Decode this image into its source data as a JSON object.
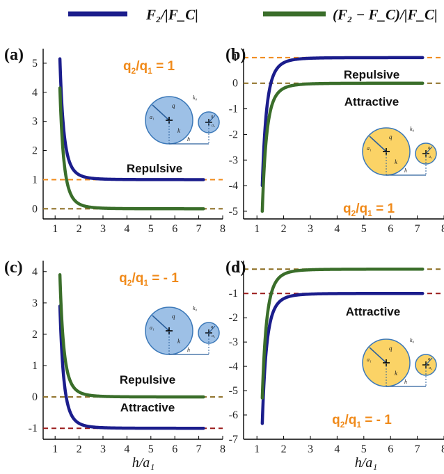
{
  "legend": {
    "entries": [
      {
        "label": "F₂/|F_C|",
        "color": "#1b1d8c"
      },
      {
        "label": "(F₂ − F_C)/|F_C|",
        "color": "#3a6e2a"
      }
    ]
  },
  "x_axis_label": "h/a₁",
  "colors": {
    "blue_series": "#1b1d8c",
    "green_series": "#3a6e2a",
    "orange_ref": "#f08a1a",
    "brown_ref": "#8a6a1e",
    "red_ref": "#9a1b1b",
    "sphere_blue": "#9dc0e6",
    "sphere_yellow": "#fbd366"
  },
  "chart_data": [
    {
      "panel": "(a)",
      "type": "line",
      "ratio_text": "q2/q1 = 1",
      "ratio_parts": [
        "q",
        "2",
        "/q",
        "1",
        " = 1"
      ],
      "annotations": [
        "Repulsive"
      ],
      "xlim": [
        0.5,
        8
      ],
      "ylim": [
        -0.35,
        5.5
      ],
      "xticks": [
        1,
        2,
        3,
        4,
        5,
        6,
        7,
        8
      ],
      "yticks": [
        0,
        1,
        2,
        3,
        4,
        5
      ],
      "ref_lines": [
        {
          "y": 1,
          "color": "orange"
        },
        {
          "y": 0,
          "color": "brown"
        }
      ],
      "inset": "blue",
      "series": [
        {
          "name": "F₂/|F_C|",
          "color": "blue",
          "x_start": 1.2,
          "x_end": 7.2,
          "y_start": 5.15,
          "asymptote": 1
        },
        {
          "name": "(F₂ − F_C)/|F_C|",
          "color": "green",
          "x_start": 1.2,
          "x_end": 7.2,
          "y_start": 4.15,
          "asymptote": 0
        }
      ]
    },
    {
      "panel": "(b)",
      "type": "line",
      "ratio_text": "q2/q1 = 1",
      "ratio_parts": [
        "q",
        "2",
        "/q",
        "1",
        " = 1"
      ],
      "annotations": [
        "Repulsive",
        "Attractive"
      ],
      "xlim": [
        0.5,
        8
      ],
      "ylim": [
        -5.3,
        1.35
      ],
      "xticks": [
        1,
        2,
        3,
        4,
        5,
        6,
        7,
        8
      ],
      "yticks": [
        1,
        0,
        -1,
        -2,
        -3,
        -4,
        -5
      ],
      "ref_lines": [
        {
          "y": 1,
          "color": "orange"
        },
        {
          "y": 0,
          "color": "brown"
        }
      ],
      "inset": "yellow",
      "series": [
        {
          "name": "F₂/|F_C|",
          "color": "blue",
          "x_start": 1.2,
          "x_end": 7.2,
          "y_start": -4.0,
          "asymptote": 1
        },
        {
          "name": "(F₂ − F_C)/|F_C|",
          "color": "green",
          "x_start": 1.2,
          "x_end": 7.2,
          "y_start": -5.0,
          "asymptote": 0
        }
      ]
    },
    {
      "panel": "(c)",
      "type": "line",
      "ratio_text": "q2/q1 = - 1",
      "ratio_parts": [
        "q",
        "2",
        "/q",
        "1",
        " = - 1"
      ],
      "annotations": [
        "Repulsive",
        "Attractive"
      ],
      "xlim": [
        0.5,
        8
      ],
      "ylim": [
        -1.35,
        4.35
      ],
      "xticks": [
        1,
        2,
        3,
        4,
        5,
        6,
        7,
        8
      ],
      "yticks": [
        4,
        3,
        2,
        1,
        0,
        -1
      ],
      "ref_lines": [
        {
          "y": 0,
          "color": "brown"
        },
        {
          "y": -1,
          "color": "red"
        }
      ],
      "inset": "blue",
      "series": [
        {
          "name": "F₂/|F_C|",
          "color": "blue",
          "x_start": 1.2,
          "x_end": 7.2,
          "y_start": 2.9,
          "asymptote": -1
        },
        {
          "name": "(F₂ − F_C)/|F_C|",
          "color": "green",
          "x_start": 1.2,
          "x_end": 7.2,
          "y_start": 3.9,
          "asymptote": 0
        }
      ]
    },
    {
      "panel": "(d)",
      "type": "line",
      "ratio_text": "q2/q1 = - 1",
      "ratio_parts": [
        "q",
        "2",
        "/q",
        "1",
        " = - 1"
      ],
      "annotations": [
        "Attractive"
      ],
      "xlim": [
        0.5,
        8
      ],
      "ylim": [
        -7.0,
        0.35
      ],
      "xticks": [
        1,
        2,
        3,
        4,
        5,
        6,
        7,
        8
      ],
      "yticks": [
        0,
        -1,
        -2,
        -3,
        -4,
        -5,
        -6,
        -7
      ],
      "ref_lines": [
        {
          "y": 0,
          "color": "brown"
        },
        {
          "y": -1,
          "color": "red"
        }
      ],
      "inset": "yellow",
      "series": [
        {
          "name": "F₂/|F_C|",
          "color": "blue",
          "x_start": 1.2,
          "x_end": 7.2,
          "y_start": -6.35,
          "asymptote": -1
        },
        {
          "name": "(F₂ − F_C)/|F_C|",
          "color": "green",
          "x_start": 1.2,
          "x_end": 7.2,
          "y_start": -5.3,
          "asymptote": 0
        }
      ]
    }
  ],
  "inset_labels": {
    "charge": "q",
    "radius": "a₁",
    "kappa_in": "k",
    "kappa_out": "k₀",
    "gap": "h",
    "charge2": "q",
    "radius2": "a₂"
  }
}
